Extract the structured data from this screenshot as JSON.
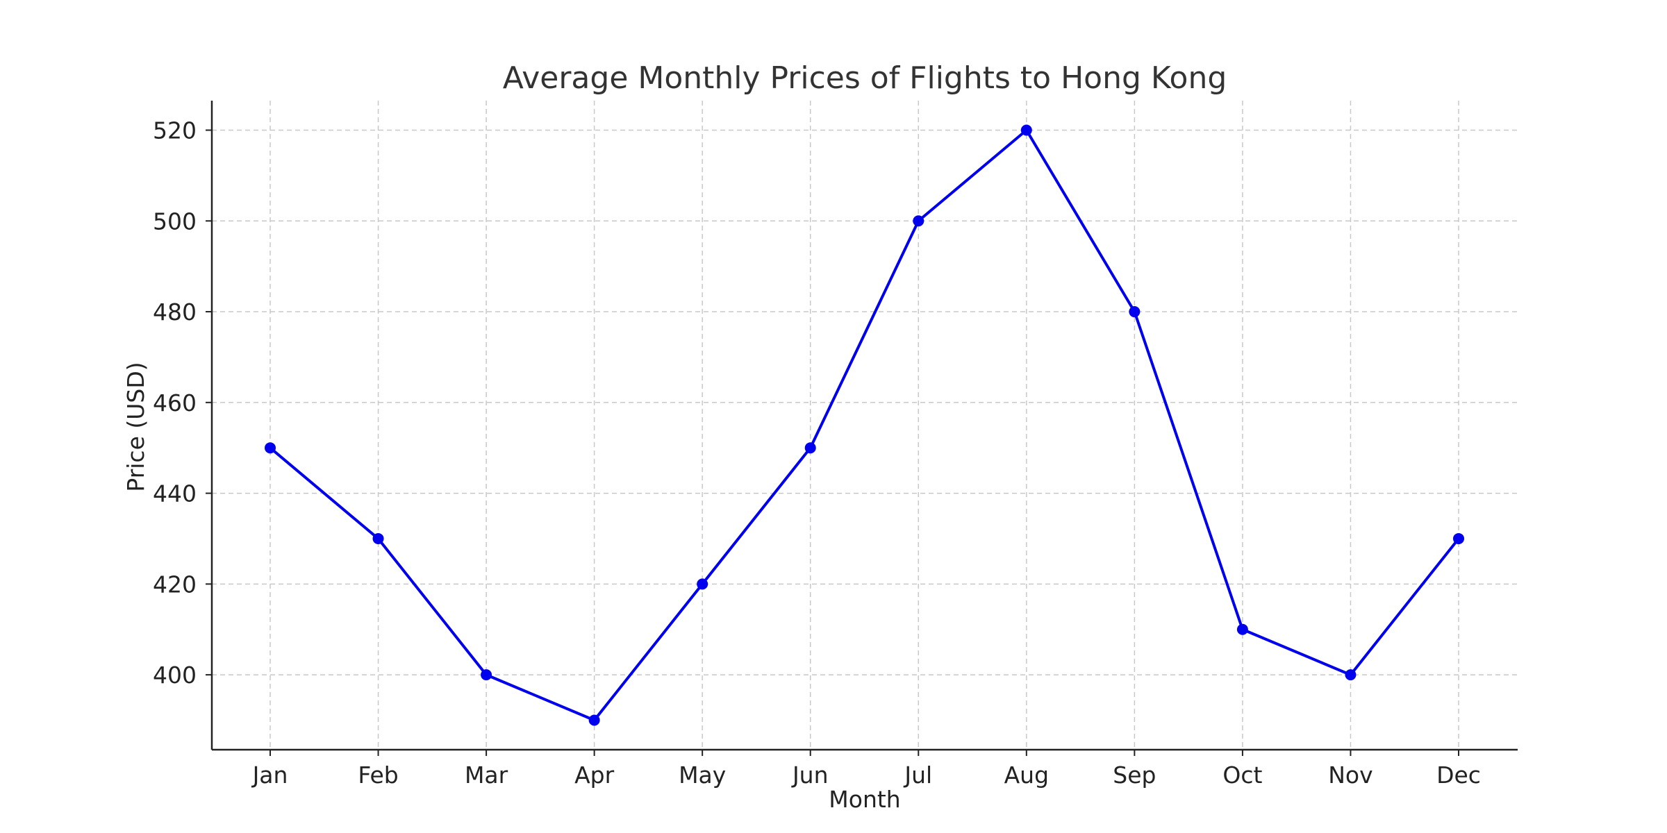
{
  "chart_data": {
    "type": "line",
    "title": "Average Monthly Prices of Flights to Hong Kong",
    "xlabel": "Month",
    "ylabel": "Price (USD)",
    "categories": [
      "Jan",
      "Feb",
      "Mar",
      "Apr",
      "May",
      "Jun",
      "Jul",
      "Aug",
      "Sep",
      "Oct",
      "Nov",
      "Dec"
    ],
    "series": [
      {
        "values": [
          450,
          430,
          400,
          390,
          420,
          450,
          500,
          520,
          480,
          410,
          400,
          430
        ],
        "color": "#0000ee",
        "marker": "circle"
      }
    ],
    "yticks": [
      400,
      420,
      440,
      460,
      480,
      500,
      520
    ],
    "ylim": [
      383.5,
      526.5
    ],
    "grid": true,
    "legend": "none"
  }
}
